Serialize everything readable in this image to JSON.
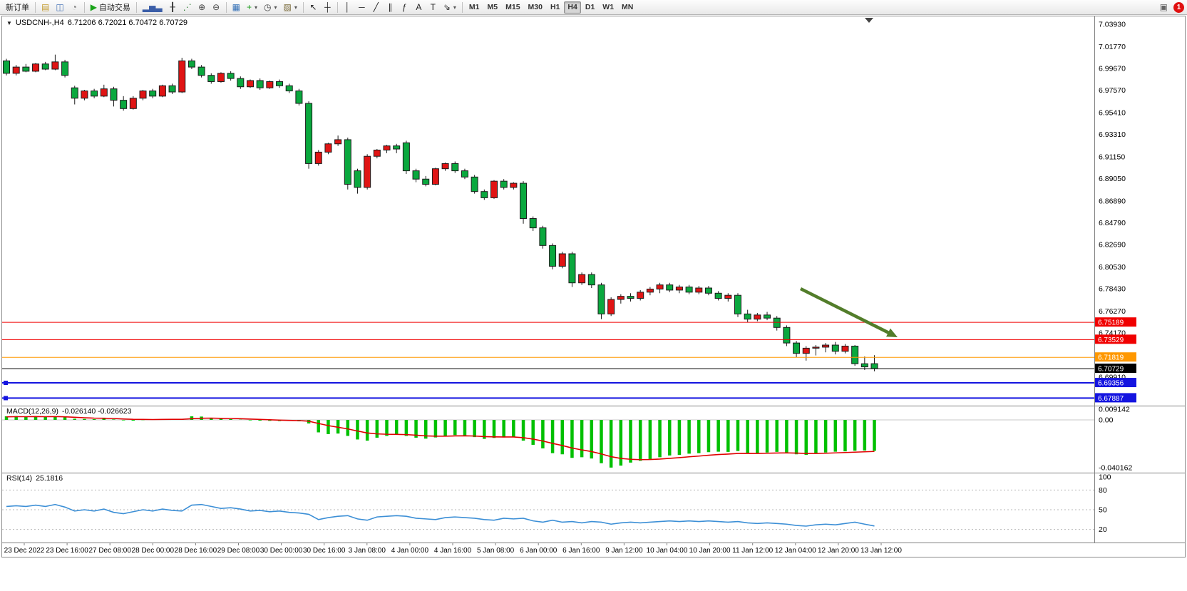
{
  "toolbar": {
    "timeframes": [
      "M1",
      "M5",
      "M15",
      "M30",
      "H1",
      "H4",
      "D1",
      "W1",
      "MN"
    ],
    "active_timeframe": "H4",
    "notification_badge": "1",
    "right_icon_glyph": "▣",
    "items": [
      {
        "type": "button",
        "name": "new-order-button",
        "label": "新订单"
      },
      {
        "type": "sep"
      },
      {
        "type": "button",
        "name": "market-watch-button",
        "glyph": "▤",
        "color": "#c39a2e"
      },
      {
        "type": "button",
        "name": "chart-window-button",
        "glyph": "◫",
        "color": "#4a76b8"
      },
      {
        "type": "button",
        "name": "terminal-button",
        "glyph": "◔",
        "color": "#777777"
      },
      {
        "type": "sep"
      },
      {
        "type": "button",
        "name": "auto-trading-button",
        "glyph": "▶",
        "color": "#18a318",
        "label": "自动交易"
      },
      {
        "type": "sep"
      },
      {
        "type": "button",
        "name": "bar-chart-button",
        "glyph": "▂▅▃",
        "color": "#3b5ea8"
      },
      {
        "type": "button",
        "name": "candlestick-chart-button",
        "glyph": "╂",
        "color": "#333333"
      },
      {
        "type": "button",
        "name": "line-chart-button",
        "glyph": "⋰",
        "color": "#2e7d32"
      },
      {
        "type": "button",
        "name": "zoom-in-button",
        "glyph": "⊕",
        "color": "#444444"
      },
      {
        "type": "button",
        "name": "zoom-out-button",
        "glyph": "⊖",
        "color": "#444444"
      },
      {
        "type": "sep"
      },
      {
        "type": "button",
        "name": "tile-windows-button",
        "glyph": "▦",
        "color": "#2f6db5"
      },
      {
        "type": "button",
        "name": "indicators-button",
        "glyph": "+",
        "color": "#169c16",
        "caret": true
      },
      {
        "type": "button",
        "name": "periods-button",
        "glyph": "◷",
        "color": "#444444",
        "caret": true
      },
      {
        "type": "button",
        "name": "templates-button",
        "glyph": "▨",
        "color": "#7a6a3a",
        "caret": true
      },
      {
        "type": "sep"
      },
      {
        "type": "button",
        "name": "cursor-button",
        "glyph": "↖",
        "color": "#222222"
      },
      {
        "type": "button",
        "name": "crosshair-button",
        "glyph": "┼",
        "color": "#222222"
      },
      {
        "type": "sep"
      },
      {
        "type": "button",
        "name": "vertical-line-button",
        "glyph": "│",
        "color": "#222222"
      },
      {
        "type": "button",
        "name": "horizontal-line-button",
        "glyph": "─",
        "color": "#222222"
      },
      {
        "type": "button",
        "name": "trendline-button",
        "glyph": "╱",
        "color": "#222222"
      },
      {
        "type": "button",
        "name": "equidistant-channel-button",
        "glyph": "∥",
        "color": "#222222"
      },
      {
        "type": "button",
        "name": "fibonacci-button",
        "glyph": "ƒ",
        "color": "#222222"
      },
      {
        "type": "button",
        "name": "text-button",
        "glyph": "A",
        "color": "#222222"
      },
      {
        "type": "button",
        "name": "text-label-button",
        "glyph": "T",
        "color": "#222222"
      },
      {
        "type": "button",
        "name": "arrows-shapes-button",
        "glyph": "⇘",
        "color": "#222222",
        "caret": true
      },
      {
        "type": "sep"
      }
    ]
  },
  "chart": {
    "title": "USDCNH-,H4",
    "ohlc_text": "6.71206 6.72021 6.70472 6.70729",
    "dropdown_glyph": "▼"
  },
  "chart_data": {
    "type": "candlestick",
    "symbol": "USDCNH-",
    "timeframe": "H4",
    "open": "6.71206",
    "high": "6.72021",
    "low": "6.70472",
    "close": "6.70729",
    "price_range": [
      6.6716,
      7.0469
    ],
    "grid": false,
    "price_axis_labels": [
      "7.03930",
      "7.01770",
      "6.99670",
      "6.97570",
      "6.95410",
      "6.93310",
      "6.91150",
      "6.89050",
      "6.86890",
      "6.84790",
      "6.82690",
      "6.80530",
      "6.78430",
      "6.76270",
      "6.74170",
      "6.69910"
    ],
    "x_labels": [
      "23 Dec 2022",
      "23 Dec 16:00",
      "27 Dec 08:00",
      "28 Dec 00:00",
      "28 Dec 16:00",
      "29 Dec 08:00",
      "30 Dec 00:00",
      "30 Dec 16:00",
      "3 Jan 08:00",
      "4 Jan 00:00",
      "4 Jan 16:00",
      "5 Jan 08:00",
      "6 Jan 00:00",
      "6 Jan 16:00",
      "9 Jan 12:00",
      "10 Jan 04:00",
      "10 Jan 20:00",
      "11 Jan 12:00",
      "12 Jan 04:00",
      "12 Jan 20:00",
      "13 Jan 12:00"
    ],
    "colors": {
      "up": "#e01414",
      "down": "#0aa83e",
      "wick": "#1c1c1c",
      "candle_border": "#1c1c1c"
    },
    "candles": [
      [
        7.004,
        7.006,
        6.99,
        6.992
      ],
      [
        6.992,
        7.0,
        6.99,
        6.998
      ],
      [
        6.998,
        7.001,
        6.993,
        6.994
      ],
      [
        6.994,
        7.002,
        6.993,
        7.001
      ],
      [
        7.001,
        7.003,
        6.995,
        6.996
      ],
      [
        6.996,
        7.01,
        6.995,
        7.003
      ],
      [
        7.003,
        7.005,
        6.988,
        6.99
      ],
      [
        6.978,
        6.98,
        6.962,
        6.968
      ],
      [
        6.968,
        6.976,
        6.966,
        6.975
      ],
      [
        6.975,
        6.977,
        6.968,
        6.97
      ],
      [
        6.97,
        6.981,
        6.969,
        6.977
      ],
      [
        6.977,
        6.979,
        6.96,
        6.966
      ],
      [
        6.966,
        6.97,
        6.956,
        6.958
      ],
      [
        6.958,
        6.97,
        6.957,
        6.968
      ],
      [
        6.968,
        6.976,
        6.966,
        6.975
      ],
      [
        6.975,
        6.977,
        6.968,
        6.97
      ],
      [
        6.97,
        6.981,
        6.969,
        6.98
      ],
      [
        6.98,
        6.982,
        6.972,
        6.974
      ],
      [
        6.974,
        7.007,
        6.973,
        7.004
      ],
      [
        7.004,
        7.006,
        6.996,
        6.998
      ],
      [
        6.998,
        7.0,
        6.988,
        6.99
      ],
      [
        6.99,
        6.992,
        6.982,
        6.984
      ],
      [
        6.984,
        6.993,
        6.983,
        6.992
      ],
      [
        6.992,
        6.994,
        6.985,
        6.987
      ],
      [
        6.987,
        6.989,
        6.977,
        6.979
      ],
      [
        6.979,
        6.986,
        6.978,
        6.985
      ],
      [
        6.985,
        6.987,
        6.976,
        6.978
      ],
      [
        6.978,
        6.985,
        6.977,
        6.984
      ],
      [
        6.984,
        6.986,
        6.978,
        6.98
      ],
      [
        6.98,
        6.982,
        6.973,
        6.975
      ],
      [
        6.975,
        6.977,
        6.961,
        6.963
      ],
      [
        6.963,
        6.965,
        6.9,
        6.905
      ],
      [
        6.905,
        6.918,
        6.903,
        6.916
      ],
      [
        6.916,
        6.925,
        6.914,
        6.924
      ],
      [
        6.924,
        6.932,
        6.922,
        6.928
      ],
      [
        6.928,
        6.93,
        6.88,
        6.885
      ],
      [
        6.898,
        6.9,
        6.876,
        6.882
      ],
      [
        6.882,
        6.914,
        6.88,
        6.912
      ],
      [
        6.912,
        6.919,
        6.91,
        6.918
      ],
      [
        6.918,
        6.923,
        6.915,
        6.922
      ],
      [
        6.922,
        6.924,
        6.915,
        6.919
      ],
      [
        6.925,
        6.927,
        6.895,
        6.898
      ],
      [
        6.898,
        6.9,
        6.887,
        6.89
      ],
      [
        6.89,
        6.893,
        6.883,
        6.885
      ],
      [
        6.885,
        6.901,
        6.884,
        6.9
      ],
      [
        6.9,
        6.906,
        6.898,
        6.905
      ],
      [
        6.905,
        6.907,
        6.896,
        6.898
      ],
      [
        6.898,
        6.9,
        6.89,
        6.892
      ],
      [
        6.892,
        6.894,
        6.876,
        6.878
      ],
      [
        6.878,
        6.88,
        6.87,
        6.872
      ],
      [
        6.872,
        6.889,
        6.871,
        6.888
      ],
      [
        6.888,
        6.89,
        6.88,
        6.882
      ],
      [
        6.882,
        6.887,
        6.88,
        6.886
      ],
      [
        6.886,
        6.888,
        6.847,
        6.852
      ],
      [
        6.852,
        6.854,
        6.84,
        6.843
      ],
      [
        6.843,
        6.845,
        6.823,
        6.826
      ],
      [
        6.826,
        6.828,
        6.803,
        6.806
      ],
      [
        6.806,
        6.82,
        6.804,
        6.818
      ],
      [
        6.818,
        6.82,
        6.786,
        6.79
      ],
      [
        6.79,
        6.8,
        6.788,
        6.798
      ],
      [
        6.798,
        6.8,
        6.785,
        6.788
      ],
      [
        6.788,
        6.79,
        6.755,
        6.76
      ],
      [
        6.76,
        6.776,
        6.758,
        6.774
      ],
      [
        6.774,
        6.779,
        6.77,
        6.777
      ],
      [
        6.777,
        6.78,
        6.772,
        6.775
      ],
      [
        6.775,
        6.783,
        6.773,
        6.781
      ],
      [
        6.781,
        6.786,
        6.778,
        6.784
      ],
      [
        6.784,
        6.79,
        6.78,
        6.788
      ],
      [
        6.788,
        6.79,
        6.781,
        6.783
      ],
      [
        6.783,
        6.788,
        6.78,
        6.786
      ],
      [
        6.786,
        6.788,
        6.779,
        6.781
      ],
      [
        6.781,
        6.787,
        6.779,
        6.785
      ],
      [
        6.785,
        6.787,
        6.778,
        6.78
      ],
      [
        6.78,
        6.782,
        6.773,
        6.775
      ],
      [
        6.775,
        6.78,
        6.772,
        6.778
      ],
      [
        6.778,
        6.78,
        6.757,
        6.76
      ],
      [
        6.76,
        6.764,
        6.752,
        6.755
      ],
      [
        6.755,
        6.761,
        6.753,
        6.759
      ],
      [
        6.759,
        6.762,
        6.754,
        6.756
      ],
      [
        6.756,
        6.758,
        6.744,
        6.747
      ],
      [
        6.747,
        6.749,
        6.729,
        6.732
      ],
      [
        6.732,
        6.734,
        6.718,
        6.722
      ],
      [
        6.722,
        6.729,
        6.715,
        6.727
      ],
      [
        6.727,
        6.73,
        6.72,
        6.728
      ],
      [
        6.728,
        6.732,
        6.723,
        6.73
      ],
      [
        6.73,
        6.733,
        6.721,
        6.724
      ],
      [
        6.724,
        6.731,
        6.722,
        6.729
      ],
      [
        6.729,
        6.73,
        6.71,
        6.712
      ],
      [
        6.712,
        6.719,
        6.706,
        6.709
      ],
      [
        6.71206,
        6.72021,
        6.70472,
        6.70729
      ]
    ],
    "hlines": [
      {
        "price": 6.75189,
        "label": "6.75189",
        "color": "#f00000",
        "width": 1
      },
      {
        "price": 6.73529,
        "label": "6.73529",
        "color": "#f00000",
        "width": 1
      },
      {
        "price": 6.71819,
        "label": "6.71819",
        "color": "#ff9800",
        "width": 1
      },
      {
        "price": 6.70729,
        "label": "6.70729",
        "color": "#000000",
        "width": 1,
        "current": true
      },
      {
        "price": 6.69356,
        "label": "6.69356",
        "color": "#1414e0",
        "width": 2,
        "anchor": true
      },
      {
        "price": 6.67887,
        "label": "6.67887",
        "color": "#1414e0",
        "width": 2,
        "anchor": true
      }
    ],
    "arrow": {
      "from": [
        1120,
        382
      ],
      "to": [
        1256,
        450
      ],
      "color": "#527d2a"
    },
    "macd": {
      "label": "MACD(12,26,9)",
      "values_text": "-0.026140 -0.026623",
      "histogram_color": "#00c000",
      "signal_color": "#e00000",
      "axis": [
        {
          "value": 0.009142,
          "text": "0.009142"
        },
        {
          "value": 0,
          "text": "0.00"
        },
        {
          "value": -0.040162,
          "text": "-0.040162"
        }
      ],
      "histogram": [
        0.003,
        0.0032,
        0.0028,
        0.003,
        0.0026,
        0.003,
        0.0022,
        0.001,
        0.0008,
        0.0006,
        0.001,
        0.0004,
        -0.0004,
        -0.0006,
        -0.0002,
        0.0002,
        0.0006,
        0.0008,
        0.0004,
        0.003,
        0.0028,
        0.0018,
        0.0008,
        0.0006,
        0.0002,
        -0.0004,
        -0.0006,
        -0.0008,
        -0.001,
        -0.0008,
        -0.0012,
        -0.003,
        -0.0105,
        -0.012,
        -0.0115,
        -0.0135,
        -0.0165,
        -0.0175,
        -0.015,
        -0.0135,
        -0.0125,
        -0.0135,
        -0.015,
        -0.0158,
        -0.0148,
        -0.0135,
        -0.0128,
        -0.013,
        -0.0145,
        -0.016,
        -0.0152,
        -0.0148,
        -0.0145,
        -0.0175,
        -0.021,
        -0.024,
        -0.028,
        -0.029,
        -0.032,
        -0.0315,
        -0.0325,
        -0.0365,
        -0.0402,
        -0.0385,
        -0.036,
        -0.0345,
        -0.033,
        -0.0315,
        -0.03,
        -0.0295,
        -0.0285,
        -0.028,
        -0.0272,
        -0.0268,
        -0.027,
        -0.0262,
        -0.0278,
        -0.0285,
        -0.0275,
        -0.027,
        -0.0275,
        -0.029,
        -0.0295,
        -0.0285,
        -0.0275,
        -0.0268,
        -0.0265,
        -0.026,
        -0.0258,
        -0.0261
      ],
      "signal": [
        0.0026,
        0.0027,
        0.0027,
        0.0028,
        0.0027,
        0.0028,
        0.0026,
        0.0022,
        0.0018,
        0.0015,
        0.0014,
        0.0012,
        0.0008,
        0.0005,
        0.0004,
        0.0003,
        0.0004,
        0.0005,
        0.0005,
        0.001,
        0.0014,
        0.0015,
        0.0013,
        0.0012,
        0.001,
        0.0007,
        0.0004,
        0.0001,
        -0.0002,
        -0.0004,
        -0.0006,
        -0.0011,
        -0.003,
        -0.0048,
        -0.0062,
        -0.0076,
        -0.0094,
        -0.011,
        -0.0118,
        -0.0121,
        -0.0122,
        -0.0124,
        -0.0129,
        -0.0135,
        -0.0137,
        -0.0137,
        -0.0135,
        -0.0134,
        -0.0136,
        -0.0141,
        -0.0143,
        -0.0144,
        -0.0144,
        -0.015,
        -0.0162,
        -0.0178,
        -0.0198,
        -0.0216,
        -0.0237,
        -0.0253,
        -0.0267,
        -0.0287,
        -0.031,
        -0.0325,
        -0.0332,
        -0.0335,
        -0.0334,
        -0.033,
        -0.0324,
        -0.0318,
        -0.0311,
        -0.0305,
        -0.0298,
        -0.0292,
        -0.0288,
        -0.0283,
        -0.0282,
        -0.0283,
        -0.0281,
        -0.0279,
        -0.0278,
        -0.028,
        -0.0283,
        -0.0283,
        -0.0281,
        -0.0278,
        -0.0275,
        -0.0272,
        -0.0269,
        -0.0266
      ]
    },
    "rsi": {
      "label": "RSI(14)",
      "value_text": "25.1816",
      "color": "#3c8fd6",
      "axis_labels": [
        "100",
        "80",
        "50",
        "20"
      ],
      "levels": [
        80,
        50,
        20
      ],
      "range": [
        0,
        100
      ],
      "values": [
        55,
        56,
        55,
        57,
        55,
        58,
        54,
        48,
        50,
        48,
        51,
        46,
        44,
        47,
        50,
        48,
        51,
        49,
        48,
        57,
        58,
        55,
        52,
        53,
        51,
        48,
        49,
        47,
        48,
        46,
        45,
        43,
        35,
        38,
        40,
        41,
        36,
        34,
        39,
        40,
        41,
        40,
        37,
        36,
        35,
        38,
        39,
        38,
        37,
        35,
        34,
        37,
        36,
        37,
        33,
        31,
        34,
        31,
        32,
        30,
        32,
        31,
        28,
        30,
        31,
        30,
        31,
        32,
        33,
        32,
        33,
        32,
        33,
        32,
        31,
        32,
        30,
        29,
        30,
        29,
        28,
        26,
        25,
        27,
        28,
        27,
        29,
        31,
        28,
        25.18
      ]
    }
  }
}
